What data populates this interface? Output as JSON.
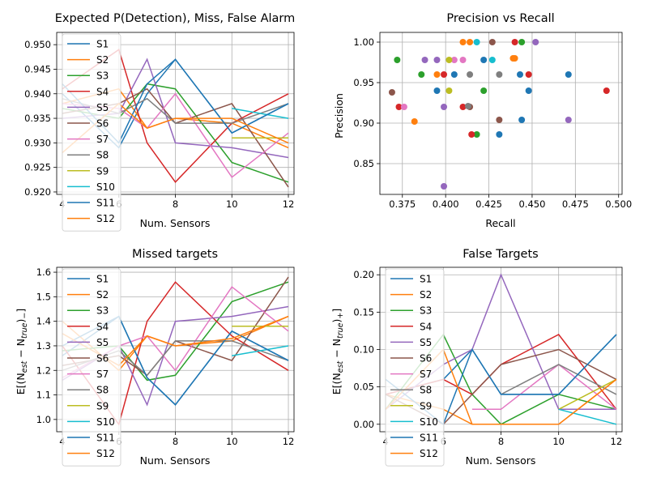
{
  "figure": {
    "background": "#ffffff"
  },
  "chart_data": [
    {
      "type": "line",
      "title": "Expected P(Detection), Miss, False Alarm",
      "xlabel": "Num. Sensors",
      "ylabel": "",
      "xlim": [
        3.8,
        12.2
      ],
      "ylim": [
        0.9195,
        0.9525
      ],
      "xticks": [
        4,
        6,
        8,
        10,
        12
      ],
      "xtick_labels": [
        "4",
        "6",
        "8",
        "10",
        "12"
      ],
      "yticks": [
        0.92,
        0.925,
        0.93,
        0.935,
        0.94,
        0.945,
        0.95
      ],
      "ytick_labels": [
        "0.920",
        "0.925",
        "0.930",
        "0.935",
        "0.940",
        "0.945",
        "0.950"
      ],
      "grid": true,
      "legend": "upper-left",
      "x": [
        4,
        6,
        7,
        8,
        10,
        12
      ],
      "series": [
        {
          "name": "S1",
          "color": "#1f77b4",
          "values": [
            0.94,
            0.929,
            0.94,
            0.947,
            0.932,
            0.938
          ]
        },
        {
          "name": "S2",
          "color": "#ff7f0e",
          "values": [
            0.938,
            0.941,
            0.933,
            0.935,
            0.934,
            0.929
          ]
        },
        {
          "name": "S3",
          "color": "#2ca02c",
          "values": [
            0.937,
            0.935,
            0.942,
            0.941,
            0.926,
            0.922
          ]
        },
        {
          "name": "S4",
          "color": "#d62728",
          "values": [
            0.941,
            0.949,
            0.93,
            0.922,
            0.934,
            0.94
          ]
        },
        {
          "name": "S5",
          "color": "#9467bd",
          "values": [
            0.935,
            0.936,
            0.947,
            0.93,
            0.929,
            0.927
          ]
        },
        {
          "name": "S6",
          "color": "#8c564b",
          "values": [
            0.936,
            0.938,
            0.941,
            0.934,
            0.938,
            0.921
          ]
        },
        {
          "name": "S7",
          "color": "#e377c2",
          "values": [
            0.938,
            0.937,
            0.933,
            0.94,
            0.923,
            0.932
          ]
        },
        {
          "name": "S8",
          "color": "#7f7f7f",
          "values": [
            0.939,
            0.936,
            0.939,
            0.934,
            0.934,
            0.938
          ]
        },
        {
          "name": "S9",
          "color": "#bcbd22",
          "values": [
            null,
            null,
            null,
            null,
            0.931,
            0.931
          ]
        },
        {
          "name": "S10",
          "color": "#17becf",
          "values": [
            null,
            null,
            null,
            null,
            0.937,
            0.935
          ]
        },
        {
          "name": "S11",
          "color": "#1f77b4",
          "values": [
            0.942,
            0.93,
            0.942,
            0.947,
            0.932,
            0.938
          ]
        },
        {
          "name": "S12",
          "color": "#ff7f0e",
          "values": [
            0.928,
            0.938,
            0.933,
            0.935,
            0.935,
            0.93
          ]
        }
      ]
    },
    {
      "type": "scatter",
      "title": "Precision vs Recall",
      "xlabel": "Recall",
      "ylabel": "Precision",
      "xlim": [
        0.362,
        0.502
      ],
      "ylim": [
        0.812,
        1.012
      ],
      "xticks": [
        0.375,
        0.4,
        0.425,
        0.45,
        0.475,
        0.5
      ],
      "xtick_labels": [
        "0.375",
        "0.400",
        "0.425",
        "0.450",
        "0.475",
        "0.500"
      ],
      "yticks": [
        0.85,
        0.9,
        0.95,
        1.0
      ],
      "ytick_labels": [
        "0.85",
        "0.90",
        "0.95",
        "1.00"
      ],
      "grid": true,
      "legend": "none",
      "series": [
        {
          "name": "S1",
          "color": "#1f77b4",
          "points": [
            [
              0.471,
              0.96
            ],
            [
              0.443,
              0.96
            ],
            [
              0.448,
              0.94
            ],
            [
              0.405,
              0.96
            ],
            [
              0.395,
              0.94
            ],
            [
              0.431,
              0.886
            ],
            [
              0.444,
              0.904
            ]
          ]
        },
        {
          "name": "S2",
          "color": "#ff7f0e",
          "points": [
            [
              0.41,
              1.0
            ],
            [
              0.414,
              1.0
            ],
            [
              0.439,
              0.98
            ],
            [
              0.395,
              0.96
            ],
            [
              0.382,
              0.902
            ]
          ]
        },
        {
          "name": "S3",
          "color": "#2ca02c",
          "points": [
            [
              0.372,
              0.978
            ],
            [
              0.386,
              0.96
            ],
            [
              0.444,
              1.0
            ],
            [
              0.422,
              0.94
            ],
            [
              0.418,
              0.886
            ]
          ]
        },
        {
          "name": "S4",
          "color": "#d62728",
          "points": [
            [
              0.493,
              0.94
            ],
            [
              0.448,
              0.96
            ],
            [
              0.44,
              1.0
            ],
            [
              0.399,
              0.96
            ],
            [
              0.373,
              0.92
            ],
            [
              0.41,
              0.92
            ],
            [
              0.415,
              0.886
            ]
          ]
        },
        {
          "name": "S5",
          "color": "#9467bd",
          "points": [
            [
              0.452,
              1.0
            ],
            [
              0.388,
              0.978
            ],
            [
              0.395,
              0.978
            ],
            [
              0.399,
              0.92
            ],
            [
              0.471,
              0.904
            ],
            [
              0.399,
              0.822
            ]
          ]
        },
        {
          "name": "S6",
          "color": "#8c564b",
          "points": [
            [
              0.369,
              0.938
            ],
            [
              0.427,
              1.0
            ],
            [
              0.414,
              0.92
            ],
            [
              0.431,
              0.904
            ]
          ]
        },
        {
          "name": "S7",
          "color": "#e377c2",
          "points": [
            [
              0.405,
              0.978
            ],
            [
              0.41,
              0.978
            ],
            [
              0.376,
              0.92
            ]
          ]
        },
        {
          "name": "S8",
          "color": "#7f7f7f",
          "points": [
            [
              0.414,
              0.96
            ],
            [
              0.431,
              0.96
            ],
            [
              0.413,
              0.921
            ]
          ]
        },
        {
          "name": "S9",
          "color": "#bcbd22",
          "points": [
            [
              0.402,
              0.978
            ],
            [
              0.402,
              0.94
            ]
          ]
        },
        {
          "name": "S10",
          "color": "#17becf",
          "points": [
            [
              0.418,
              1.0
            ],
            [
              0.427,
              0.978
            ]
          ]
        },
        {
          "name": "S11",
          "color": "#1f77b4",
          "points": [
            [
              0.422,
              0.978
            ]
          ]
        },
        {
          "name": "S12",
          "color": "#ff7f0e",
          "points": [
            [
              0.44,
              0.98
            ]
          ]
        }
      ]
    },
    {
      "type": "line",
      "title": "Missed targets",
      "xlabel": "Num. Sensors",
      "ylabel": "E[(N_est − N_true)−]",
      "xlim": [
        3.8,
        12.2
      ],
      "ylim": [
        0.95,
        1.62
      ],
      "xticks": [
        4,
        6,
        8,
        10,
        12
      ],
      "xtick_labels": [
        "4",
        "6",
        "8",
        "10",
        "12"
      ],
      "yticks": [
        1.0,
        1.1,
        1.2,
        1.3,
        1.4,
        1.5,
        1.6
      ],
      "ytick_labels": [
        "1.0",
        "1.1",
        "1.2",
        "1.3",
        "1.4",
        "1.5",
        "1.6"
      ],
      "grid": true,
      "legend": "upper-left",
      "x": [
        4,
        6,
        7,
        8,
        10,
        12
      ],
      "series": [
        {
          "name": "S1",
          "color": "#1f77b4",
          "values": [
            1.26,
            1.42,
            1.17,
            1.06,
            1.36,
            1.24
          ]
        },
        {
          "name": "S2",
          "color": "#ff7f0e",
          "values": [
            1.4,
            1.2,
            1.34,
            1.3,
            1.32,
            1.42
          ]
        },
        {
          "name": "S3",
          "color": "#2ca02c",
          "values": [
            1.28,
            1.3,
            1.16,
            1.18,
            1.48,
            1.56
          ]
        },
        {
          "name": "S4",
          "color": "#d62728",
          "values": [
            1.3,
            0.98,
            1.4,
            1.56,
            1.34,
            1.2
          ]
        },
        {
          "name": "S5",
          "color": "#9467bd",
          "values": [
            1.16,
            1.3,
            1.06,
            1.4,
            1.42,
            1.46
          ]
        },
        {
          "name": "S6",
          "color": "#8c564b",
          "values": [
            1.22,
            1.26,
            1.18,
            1.32,
            1.24,
            1.58
          ]
        },
        {
          "name": "S7",
          "color": "#e377c2",
          "values": [
            1.17,
            1.3,
            1.34,
            1.2,
            1.54,
            1.36
          ]
        },
        {
          "name": "S8",
          "color": "#7f7f7f",
          "values": [
            1.2,
            1.28,
            1.18,
            1.32,
            1.32,
            1.24
          ]
        },
        {
          "name": "S9",
          "color": "#bcbd22",
          "values": [
            null,
            null,
            null,
            null,
            1.38,
            1.38
          ]
        },
        {
          "name": "S10",
          "color": "#17becf",
          "values": [
            null,
            null,
            null,
            null,
            1.26,
            1.3
          ]
        },
        {
          "name": "S11",
          "color": "#1f77b4",
          "values": [
            1.3,
            1.42,
            1.17,
            1.06,
            1.36,
            1.24
          ]
        },
        {
          "name": "S12",
          "color": "#ff7f0e",
          "values": [
            1.35,
            1.22,
            1.34,
            1.3,
            1.33,
            1.42
          ]
        }
      ]
    },
    {
      "type": "line",
      "title": "False Targets",
      "xlabel": "Num. Sensors",
      "ylabel": "E[(N_est − N_true)+]",
      "xlim": [
        3.8,
        12.2
      ],
      "ylim": [
        -0.01,
        0.21
      ],
      "xticks": [
        4,
        6,
        8,
        10,
        12
      ],
      "xtick_labels": [
        "4",
        "6",
        "8",
        "10",
        "12"
      ],
      "yticks": [
        0.0,
        0.05,
        0.1,
        0.15,
        0.2
      ],
      "ytick_labels": [
        "0.00",
        "0.05",
        "0.10",
        "0.15",
        "0.20"
      ],
      "grid": true,
      "legend": "upper-left",
      "x": [
        4,
        6,
        7,
        8,
        10,
        12
      ],
      "series": [
        {
          "name": "S1",
          "color": "#1f77b4",
          "values": [
            0.04,
            0.06,
            0.1,
            0.04,
            0.04,
            0.12
          ]
        },
        {
          "name": "S2",
          "color": "#ff7f0e",
          "values": [
            0.04,
            0.02,
            0.0,
            0.0,
            0.0,
            0.06
          ]
        },
        {
          "name": "S3",
          "color": "#2ca02c",
          "values": [
            0.02,
            0.12,
            0.04,
            0.0,
            0.04,
            0.02
          ]
        },
        {
          "name": "S4",
          "color": "#d62728",
          "values": [
            0.04,
            0.06,
            0.04,
            0.08,
            0.12,
            0.02
          ]
        },
        {
          "name": "S5",
          "color": "#9467bd",
          "values": [
            0.02,
            0.08,
            0.1,
            0.2,
            0.02,
            0.02
          ]
        },
        {
          "name": "S6",
          "color": "#8c564b",
          "values": [
            0.04,
            0.0,
            0.04,
            0.08,
            0.1,
            0.06
          ]
        },
        {
          "name": "S7",
          "color": "#e377c2",
          "values": [
            null,
            null,
            0.02,
            0.02,
            0.08,
            0.02
          ]
        },
        {
          "name": "S8",
          "color": "#7f7f7f",
          "values": [
            null,
            null,
            null,
            0.04,
            0.08,
            0.04
          ]
        },
        {
          "name": "S9",
          "color": "#bcbd22",
          "values": [
            null,
            null,
            null,
            null,
            0.02,
            0.06
          ]
        },
        {
          "name": "S10",
          "color": "#17becf",
          "values": [
            null,
            null,
            null,
            null,
            0.02,
            0.0
          ]
        },
        {
          "name": "S11",
          "color": "#1f77b4",
          "values": [
            0.06,
            0.0,
            0.1,
            0.04,
            0.04,
            0.12
          ]
        },
        {
          "name": "S12",
          "color": "#ff7f0e",
          "values": [
            0.02,
            0.1,
            0.0,
            0.0,
            0.0,
            0.06
          ]
        }
      ]
    }
  ]
}
